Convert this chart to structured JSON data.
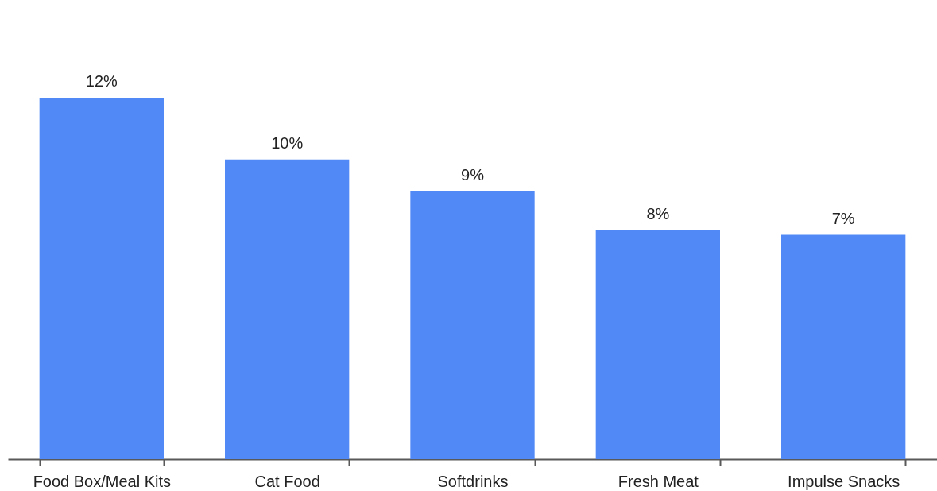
{
  "chart_data": {
    "type": "bar",
    "categories": [
      "Food Box/Meal Kits",
      "Cat Food",
      "Softdrinks",
      "Fresh Meat",
      "Impulse Snacks"
    ],
    "values": [
      12,
      9.95,
      8.9,
      7.6,
      7.45
    ],
    "value_labels": [
      "12%",
      "10%",
      "9%",
      "8%",
      "7%"
    ],
    "color": "#5189f7"
  }
}
